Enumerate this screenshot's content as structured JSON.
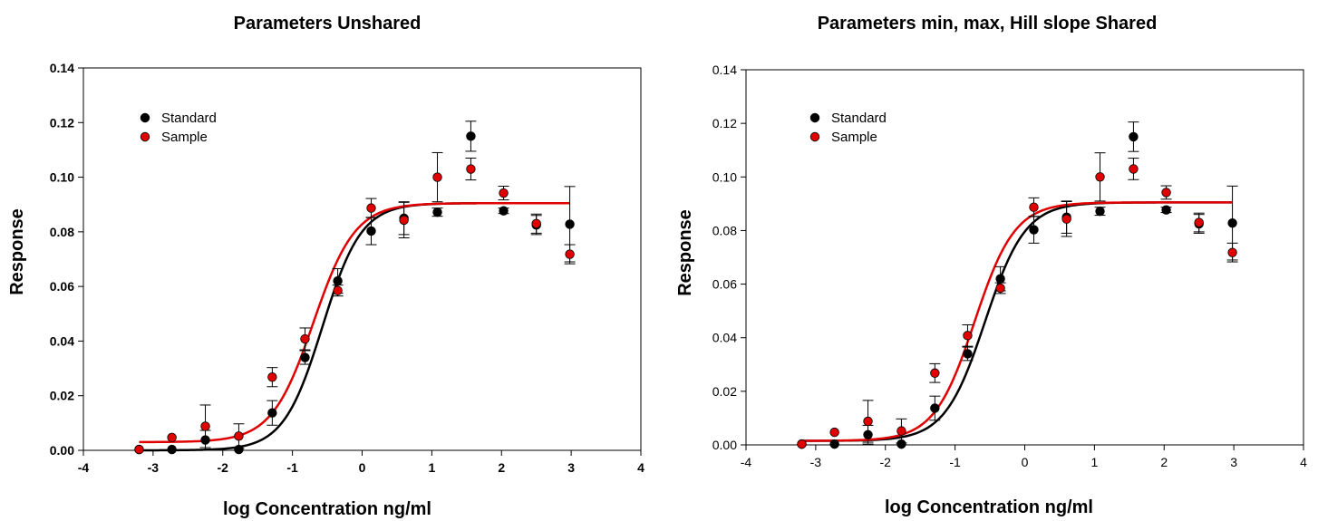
{
  "colors": {
    "standard": "#000000",
    "sample": "#e00000",
    "frame": "#000000"
  },
  "charts": [
    {
      "title": "Parameters Unshared"
    },
    {
      "title": "Parameters min, max, Hill slope Shared"
    }
  ],
  "chart_data": [
    {
      "type": "scatter",
      "title": "Parameters Unshared",
      "xlabel": "log Concentration ng/ml",
      "ylabel": "Response",
      "xlim": [
        -4,
        4
      ],
      "ylim": [
        0,
        0.14
      ],
      "x_ticks": [
        "-4",
        "-3",
        "-2",
        "-1",
        "0",
        "1",
        "2",
        "3",
        "4"
      ],
      "y_ticks": [
        "0.00",
        "0.02",
        "0.04",
        "0.06",
        "0.08",
        "0.10",
        "0.12",
        "0.14"
      ],
      "grid": false,
      "legend_position": "top-left",
      "series": [
        {
          "name": "Standard",
          "color": "#000000",
          "x": [
            -3.2,
            -2.73,
            -2.25,
            -1.77,
            -1.29,
            -0.82,
            -0.35,
            0.13,
            0.6,
            1.08,
            1.56,
            2.03,
            2.5,
            2.98
          ],
          "y": [
            0.0003,
            0.0003,
            0.0038,
            0.0003,
            0.0137,
            0.034,
            0.062,
            0.0803,
            0.085,
            0.0872,
            0.115,
            0.0877,
            0.0825,
            0.0828
          ],
          "err": [
            0.0,
            0.0,
            0.0035,
            0.0,
            0.0045,
            0.0025,
            0.0045,
            0.005,
            0.006,
            0.0015,
            0.0055,
            0.001,
            0.0035,
            0.0138
          ],
          "fit": {
            "bottom": 0.0,
            "top": 0.0905,
            "logEC50": -0.57,
            "hill": 1.55
          }
        },
        {
          "name": "Sample",
          "color": "#e00000",
          "x": [
            -3.2,
            -2.73,
            -2.25,
            -1.77,
            -1.29,
            -0.82,
            -0.35,
            0.13,
            0.6,
            1.08,
            1.56,
            2.03,
            2.5,
            2.98
          ],
          "y": [
            0.0003,
            0.0047,
            0.0088,
            0.0052,
            0.0268,
            0.0408,
            0.0585,
            0.0887,
            0.0843,
            0.1,
            0.103,
            0.0942,
            0.083,
            0.0718
          ],
          "err": [
            0.0,
            0.0,
            0.0078,
            0.0045,
            0.0035,
            0.004,
            0.002,
            0.0035,
            0.0065,
            0.009,
            0.004,
            0.0025,
            0.0035,
            0.0035
          ],
          "fit": {
            "bottom": 0.003,
            "top": 0.0905,
            "logEC50": -0.7,
            "hill": 1.45
          }
        }
      ]
    },
    {
      "type": "scatter",
      "title": "Parameters min, max, Hill slope Shared",
      "xlabel": "log Concentration ng/ml",
      "ylabel": "Response",
      "xlim": [
        -4,
        4
      ],
      "ylim": [
        0,
        0.14
      ],
      "x_ticks": [
        "-4",
        "-3",
        "-2",
        "-1",
        "0",
        "1",
        "2",
        "3",
        "4"
      ],
      "y_ticks": [
        "0.00",
        "0.02",
        "0.04",
        "0.06",
        "0.08",
        "0.10",
        "0.12",
        "0.14"
      ],
      "grid": false,
      "legend_position": "top-left",
      "series": [
        {
          "name": "Standard",
          "color": "#000000",
          "x": [
            -3.2,
            -2.73,
            -2.25,
            -1.77,
            -1.29,
            -0.82,
            -0.35,
            0.13,
            0.6,
            1.08,
            1.56,
            2.03,
            2.5,
            2.98
          ],
          "y": [
            0.0003,
            0.0003,
            0.0038,
            0.0003,
            0.0137,
            0.034,
            0.062,
            0.0803,
            0.085,
            0.0872,
            0.115,
            0.0877,
            0.0825,
            0.0828
          ],
          "err": [
            0.0,
            0.0,
            0.0035,
            0.0,
            0.0045,
            0.0025,
            0.0045,
            0.005,
            0.006,
            0.0015,
            0.0055,
            0.001,
            0.0035,
            0.0138
          ],
          "fit": {
            "bottom": 0.0015,
            "top": 0.0905,
            "logEC50": -0.57,
            "hill": 1.5
          }
        },
        {
          "name": "Sample",
          "color": "#e00000",
          "x": [
            -3.2,
            -2.73,
            -2.25,
            -1.77,
            -1.29,
            -0.82,
            -0.35,
            0.13,
            0.6,
            1.08,
            1.56,
            2.03,
            2.5,
            2.98
          ],
          "y": [
            0.0003,
            0.0047,
            0.0088,
            0.0052,
            0.0268,
            0.0408,
            0.0585,
            0.0887,
            0.0843,
            0.1,
            0.103,
            0.0942,
            0.083,
            0.0718
          ],
          "err": [
            0.0,
            0.0,
            0.0078,
            0.0045,
            0.0035,
            0.004,
            0.002,
            0.0035,
            0.0065,
            0.009,
            0.004,
            0.0025,
            0.0035,
            0.0035
          ],
          "fit": {
            "bottom": 0.0015,
            "top": 0.0905,
            "logEC50": -0.72,
            "hill": 1.5
          }
        }
      ]
    }
  ]
}
